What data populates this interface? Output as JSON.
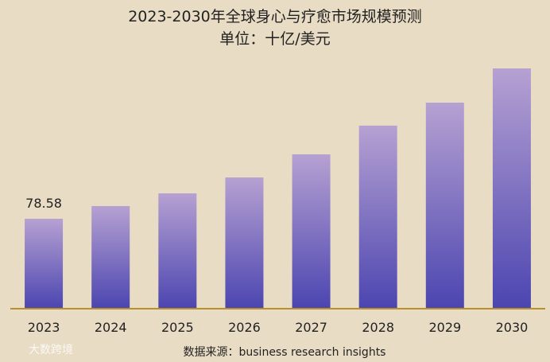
{
  "chart_data": {
    "type": "bar",
    "title": "2023-2030年全球身心与疗愈市场规模预测",
    "subtitle": "单位：十亿/美元",
    "source": "数据来源：business research insights",
    "watermark": "大数跨境",
    "categories": [
      "2023",
      "2024",
      "2025",
      "2026",
      "2027",
      "2028",
      "2029",
      "2030"
    ],
    "values": [
      78.58,
      89.7,
      100.8,
      114.7,
      134.9,
      160.0,
      180.1,
      210.0
    ],
    "value_labels": [
      "78.58",
      null,
      null,
      null,
      null,
      null,
      null,
      null
    ],
    "color": "#4b45b0",
    "gradient_top": "#b6a1d2",
    "baseline_color": "#b8902c"
  }
}
